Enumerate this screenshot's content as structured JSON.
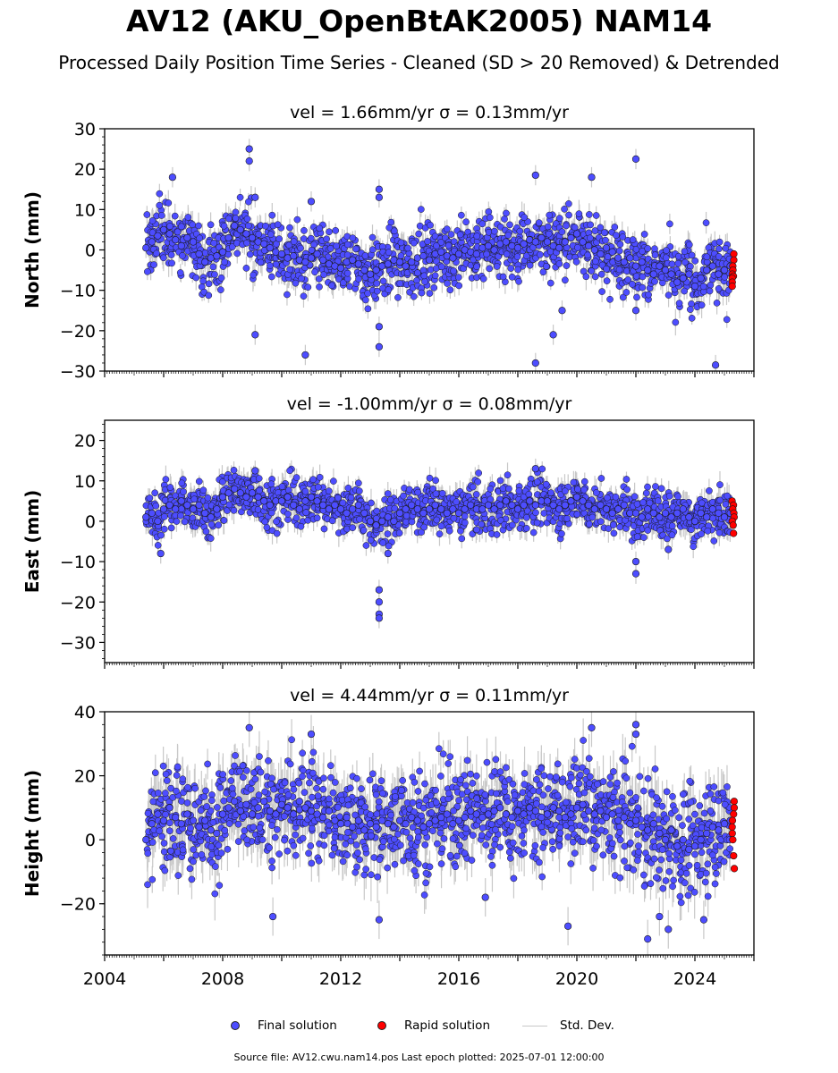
{
  "title": "AV12 (AKU_OpenBtAK2005) NAM14",
  "subtitle": "Processed Daily Position Time Series - Cleaned (SD > 20 Removed) & Detrended",
  "legend": {
    "final": "Final solution",
    "rapid": "Rapid solution",
    "std": "Std. Dev."
  },
  "footer": "Source file: AV12.cwu.nam14.pos  Last epoch plotted: 2025-07-01 12:00:00",
  "colors": {
    "final": "#4d4dff",
    "rapid": "#ff0000",
    "std": "#c8c8c8",
    "edge": "#1a1a1a"
  },
  "chart_data": [
    {
      "type": "scatter",
      "panel": "north",
      "title": "vel = 1.66mm/yr   σ = 0.13mm/yr",
      "ylabel": "North (mm)",
      "xlim": [
        2004.0,
        2026.0
      ],
      "ylim": [
        -30,
        30
      ],
      "yticks": [
        30,
        20,
        10,
        0,
        -10,
        -20,
        -30
      ],
      "xticks": [],
      "series_final": {
        "name": "Final solution",
        "x": [
          2005.4,
          2005.6,
          2005.8,
          2006.0,
          2006.2,
          2006.4,
          2006.6,
          2006.8,
          2007.0,
          2007.2,
          2007.4,
          2007.6,
          2007.8,
          2008.0,
          2008.2,
          2008.4,
          2008.6,
          2008.8,
          2009.0,
          2009.2,
          2009.4,
          2009.6,
          2009.8,
          2010.0,
          2010.2,
          2010.4,
          2010.6,
          2010.8,
          2011.0,
          2011.2,
          2011.4,
          2011.6,
          2011.8,
          2012.0,
          2012.2,
          2012.4,
          2012.6,
          2012.8,
          2013.0,
          2013.2,
          2013.4,
          2013.6,
          2013.8,
          2014.0,
          2014.2,
          2014.4,
          2014.6,
          2014.8,
          2015.0,
          2015.2,
          2015.4,
          2015.6,
          2015.8,
          2016.0,
          2016.2,
          2016.4,
          2016.6,
          2016.8,
          2017.0,
          2017.2,
          2017.4,
          2017.6,
          2017.8,
          2018.0,
          2018.2,
          2018.4,
          2018.6,
          2018.8,
          2019.0,
          2019.2,
          2019.4,
          2019.6,
          2019.8,
          2020.0,
          2020.2,
          2020.4,
          2020.6,
          2020.8,
          2021.0,
          2021.2,
          2021.4,
          2021.6,
          2021.8,
          2022.0,
          2022.2,
          2022.4,
          2022.6,
          2022.8,
          2023.0,
          2023.2,
          2023.4,
          2023.6,
          2023.8,
          2024.0,
          2024.2,
          2024.4,
          2024.6,
          2024.8,
          2025.0,
          2025.2,
          2008.9,
          2008.9,
          2006.3,
          2009.1,
          2011.0,
          2013.3,
          2013.3,
          2013.3,
          2018.6,
          2019.2,
          2020.5,
          2022.0,
          2022.0,
          2010.8,
          2013.3,
          2018.6,
          2024.7,
          2009.1,
          2019.5
        ],
        "y": [
          0.5,
          2.0,
          3.5,
          5.0,
          4.0,
          2.5,
          1.0,
          3.0,
          2.0,
          -1.0,
          -3.0,
          -2.0,
          -1.5,
          -0.5,
          3.0,
          6.0,
          5.0,
          4.0,
          3.0,
          2.0,
          1.5,
          0.5,
          -0.5,
          -1.0,
          -2.0,
          -1.5,
          -2.5,
          -3.0,
          -2.0,
          -1.0,
          -2.5,
          -3.5,
          -4.0,
          -4.5,
          -3.0,
          -2.5,
          -3.5,
          -5.0,
          -6.0,
          -5.0,
          -4.0,
          -3.5,
          -2.5,
          -3.0,
          -4.0,
          -3.0,
          -2.0,
          -1.5,
          -2.5,
          -1.0,
          -0.5,
          -1.5,
          -2.0,
          -1.0,
          0.0,
          -0.5,
          -1.0,
          0.5,
          1.0,
          0.0,
          1.5,
          2.0,
          1.0,
          0.5,
          1.5,
          2.5,
          2.0,
          3.0,
          2.0,
          1.0,
          0.5,
          2.0,
          3.0,
          4.0,
          2.0,
          1.0,
          0.0,
          -1.0,
          0.5,
          -0.5,
          -2.0,
          -3.0,
          -2.0,
          -4.0,
          -3.0,
          -5.0,
          -6.0,
          -4.0,
          -5.0,
          -6.0,
          -8.0,
          -7.0,
          -6.0,
          -9.0,
          -7.0,
          -5.0,
          -4.0,
          -6.0,
          -5.0,
          -4.0,
          25.0,
          22.0,
          18.0,
          -21.0,
          12.0,
          15.0,
          13.0,
          -24.0,
          -28.0,
          -21.0,
          18.0,
          22.5,
          -15.0,
          -26.0,
          -19.0,
          18.5,
          -28.5,
          13.0,
          -15.0
        ]
      },
      "series_rapid": {
        "name": "Rapid solution",
        "x": [
          2025.3,
          2025.3,
          2025.3,
          2025.3,
          2025.3,
          2025.3,
          2025.3,
          2025.3,
          2025.3
        ],
        "y": [
          -1.0,
          -2.5,
          -4.0,
          -5.0,
          -6.0,
          -6.5,
          -7.0,
          -8.0,
          -9.0
        ]
      },
      "std_dev": 2.5,
      "spread": 4.0
    },
    {
      "type": "scatter",
      "panel": "east",
      "title": "vel = -1.00mm/yr   σ = 0.08mm/yr",
      "ylabel": "East (mm)",
      "xlim": [
        2004.0,
        2026.0
      ],
      "ylim": [
        -35,
        25
      ],
      "yticks": [
        20,
        10,
        0,
        -10,
        -20,
        -30
      ],
      "xticks": [],
      "series_final": {
        "name": "Final solution",
        "x": [
          2005.4,
          2005.6,
          2005.8,
          2006.0,
          2006.2,
          2006.4,
          2006.6,
          2006.8,
          2007.0,
          2007.2,
          2007.4,
          2007.6,
          2007.8,
          2008.0,
          2008.2,
          2008.4,
          2008.6,
          2008.8,
          2009.0,
          2009.2,
          2009.4,
          2009.6,
          2009.8,
          2010.0,
          2010.2,
          2010.4,
          2010.6,
          2010.8,
          2011.0,
          2011.2,
          2011.4,
          2011.6,
          2011.8,
          2012.0,
          2012.2,
          2012.4,
          2012.6,
          2012.8,
          2013.0,
          2013.2,
          2013.4,
          2013.6,
          2013.8,
          2014.0,
          2014.2,
          2014.4,
          2014.6,
          2014.8,
          2015.0,
          2015.2,
          2015.4,
          2015.6,
          2015.8,
          2016.0,
          2016.2,
          2016.4,
          2016.6,
          2016.8,
          2017.0,
          2017.2,
          2017.4,
          2017.6,
          2017.8,
          2018.0,
          2018.2,
          2018.4,
          2018.6,
          2018.8,
          2019.0,
          2019.2,
          2019.4,
          2019.6,
          2019.8,
          2020.0,
          2020.2,
          2020.4,
          2020.6,
          2020.8,
          2021.0,
          2021.2,
          2021.4,
          2021.6,
          2021.8,
          2022.0,
          2022.2,
          2022.4,
          2022.6,
          2022.8,
          2023.0,
          2023.2,
          2023.4,
          2023.6,
          2023.8,
          2024.0,
          2024.2,
          2024.4,
          2024.6,
          2024.8,
          2025.0,
          2025.2,
          2013.3,
          2013.3,
          2013.3,
          2013.3,
          2022.0,
          2022.0,
          2005.9,
          2009.1,
          2018.6,
          2023.1,
          2013.6
        ],
        "y": [
          1.0,
          2.0,
          0.0,
          3.0,
          4.0,
          3.0,
          5.0,
          4.0,
          3.0,
          4.0,
          2.0,
          1.0,
          3.0,
          6.0,
          7.0,
          8.0,
          7.0,
          6.0,
          7.0,
          6.0,
          5.0,
          4.0,
          5.0,
          5.0,
          6.0,
          4.0,
          3.0,
          5.0,
          6.0,
          5.0,
          4.0,
          3.0,
          4.0,
          3.0,
          2.0,
          3.0,
          4.0,
          2.0,
          0.0,
          -1.0,
          0.0,
          1.0,
          0.0,
          2.0,
          3.0,
          4.0,
          3.0,
          2.0,
          3.0,
          4.0,
          3.0,
          2.0,
          3.0,
          2.0,
          3.0,
          4.0,
          3.0,
          3.0,
          4.0,
          3.0,
          4.0,
          5.0,
          4.0,
          3.0,
          4.0,
          5.0,
          4.0,
          5.0,
          5.0,
          4.0,
          3.0,
          4.0,
          5.0,
          6.0,
          5.0,
          4.0,
          3.0,
          4.0,
          3.0,
          2.0,
          3.0,
          4.0,
          2.0,
          2.0,
          1.0,
          3.0,
          2.0,
          1.0,
          2.0,
          1.0,
          2.0,
          3.0,
          1.0,
          0.0,
          2.0,
          1.0,
          3.0,
          2.0,
          1.0,
          2.0,
          -17.0,
          -20.0,
          -23.0,
          -24.0,
          -10.0,
          -13.0,
          -8.0,
          12.5,
          13.0,
          -7.0,
          -8.0
        ]
      },
      "series_rapid": {
        "name": "Rapid solution",
        "x": [
          2025.3,
          2025.3,
          2025.3,
          2025.3,
          2025.3,
          2025.3,
          2025.3,
          2025.3
        ],
        "y": [
          5.0,
          4.0,
          3.0,
          2.0,
          1.0,
          0.0,
          -1.0,
          -3.0
        ]
      },
      "std_dev": 2.5,
      "spread": 3.0
    },
    {
      "type": "scatter",
      "panel": "height",
      "title": "vel = 4.44mm/yr   σ = 0.11mm/yr",
      "ylabel": "Height (mm)",
      "xlim": [
        2004.0,
        2026.0
      ],
      "ylim": [
        -36,
        40
      ],
      "yticks": [
        40,
        20,
        0,
        -20
      ],
      "xticks": [
        2004,
        2008,
        2012,
        2016,
        2020,
        2024
      ],
      "series_final": {
        "name": "Final solution",
        "x": [
          2005.4,
          2005.6,
          2005.8,
          2006.0,
          2006.2,
          2006.4,
          2006.6,
          2006.8,
          2007.0,
          2007.2,
          2007.4,
          2007.6,
          2007.8,
          2008.0,
          2008.2,
          2008.4,
          2008.6,
          2008.8,
          2009.0,
          2009.2,
          2009.4,
          2009.6,
          2009.8,
          2010.0,
          2010.2,
          2010.4,
          2010.6,
          2010.8,
          2011.0,
          2011.2,
          2011.4,
          2011.6,
          2011.8,
          2012.0,
          2012.2,
          2012.4,
          2012.6,
          2012.8,
          2013.0,
          2013.2,
          2013.4,
          2013.6,
          2013.8,
          2014.0,
          2014.2,
          2014.4,
          2014.6,
          2014.8,
          2015.0,
          2015.2,
          2015.4,
          2015.6,
          2015.8,
          2016.0,
          2016.2,
          2016.4,
          2016.6,
          2016.8,
          2017.0,
          2017.2,
          2017.4,
          2017.6,
          2017.8,
          2018.0,
          2018.2,
          2018.4,
          2018.6,
          2018.8,
          2019.0,
          2019.2,
          2019.4,
          2019.6,
          2019.8,
          2020.0,
          2020.2,
          2020.4,
          2020.6,
          2020.8,
          2021.0,
          2021.2,
          2021.4,
          2021.6,
          2021.8,
          2022.0,
          2022.2,
          2022.4,
          2022.6,
          2022.8,
          2023.0,
          2023.2,
          2023.4,
          2023.6,
          2023.8,
          2024.0,
          2024.2,
          2024.4,
          2024.6,
          2024.8,
          2025.0,
          2025.2,
          2008.9,
          2011.0,
          2020.5,
          2022.0,
          2022.0,
          2019.7,
          2022.4,
          2022.8,
          2023.1,
          2024.3,
          2009.7,
          2013.3,
          2016.9
        ],
        "y": [
          0.0,
          5.0,
          8.0,
          6.0,
          10.0,
          7.0,
          5.0,
          8.0,
          6.0,
          4.0,
          6.0,
          3.0,
          2.0,
          8.0,
          10.0,
          12.0,
          9.0,
          11.0,
          8.0,
          10.0,
          12.0,
          9.0,
          8.0,
          11.0,
          10.0,
          8.0,
          12.0,
          10.0,
          9.0,
          8.0,
          7.0,
          9.0,
          6.0,
          5.0,
          7.0,
          4.0,
          6.0,
          3.0,
          5.0,
          4.0,
          6.0,
          5.0,
          4.0,
          6.0,
          5.0,
          7.0,
          6.0,
          4.0,
          5.0,
          6.0,
          7.0,
          8.0,
          5.0,
          6.0,
          7.0,
          9.0,
          8.0,
          7.0,
          8.0,
          9.0,
          10.0,
          8.0,
          7.0,
          9.0,
          8.0,
          10.0,
          9.0,
          7.0,
          8.0,
          10.0,
          9.0,
          7.0,
          8.0,
          10.0,
          11.0,
          9.0,
          8.0,
          9.0,
          7.0,
          8.0,
          6.0,
          7.0,
          5.0,
          6.0,
          4.0,
          3.0,
          5.0,
          2.0,
          0.0,
          3.0,
          -2.0,
          0.0,
          -3.0,
          -2.0,
          0.0,
          2.0,
          4.0,
          3.0,
          5.0,
          6.0,
          35.0,
          33.0,
          35.0,
          36.0,
          33.0,
          -27.0,
          -31.0,
          -24.0,
          -28.0,
          -25.0,
          -24.0,
          -25.0,
          -18.0
        ]
      },
      "series_rapid": {
        "name": "Rapid solution",
        "x": [
          2025.3,
          2025.3,
          2025.3,
          2025.3,
          2025.3,
          2025.3,
          2025.3,
          2025.3,
          2025.3
        ],
        "y": [
          12.0,
          10.0,
          8.0,
          6.0,
          4.0,
          2.0,
          0.0,
          -5.0,
          -9.0
        ]
      },
      "std_dev": 6.0,
      "spread": 8.0
    }
  ]
}
